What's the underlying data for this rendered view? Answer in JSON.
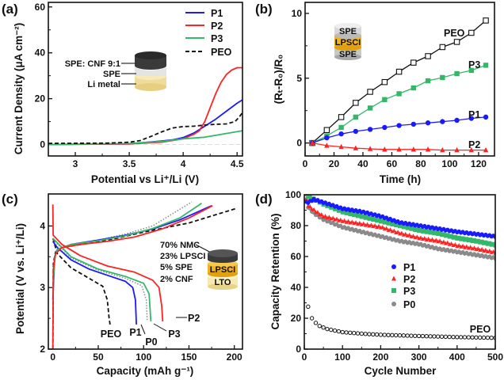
{
  "panel_labels": [
    "(a)",
    "(b)",
    "(c)",
    "(d)"
  ],
  "colors": {
    "P1": "#1a1aff",
    "P2": "#ff2222",
    "P3": "#33b86a",
    "P0": "#8a8a8a",
    "PEO": "#111111"
  },
  "insets": {
    "a": {
      "layers": [
        "SPE: CNF 9:1",
        "SPE",
        "Li metal"
      ]
    },
    "b": {
      "layers": [
        "SPE",
        "LPSCI",
        "SPE"
      ]
    },
    "c": {
      "composition": [
        "70% NMC",
        "23% LPSCI",
        "5% SPE",
        "2% CNF"
      ],
      "layers": [
        "LPSCI",
        "LTO"
      ]
    }
  },
  "chart_data": [
    {
      "type": "line",
      "xlabel": "Potential vs Li⁺/Li (V)",
      "ylabel": "Current Density (μA cm⁻²)",
      "xlim": [
        2.75,
        4.55
      ],
      "ylim": [
        -5,
        62
      ],
      "xticks": [
        3,
        3.5,
        4,
        4.5
      ],
      "yticks": [
        0,
        20,
        40,
        60
      ],
      "legend": {
        "placement": "top-right",
        "entries": [
          "P1",
          "P2",
          "P3",
          "PEO"
        ]
      },
      "series": [
        {
          "name": "P1",
          "style": "solid",
          "points": [
            [
              2.75,
              0
            ],
            [
              3.5,
              0.3
            ],
            [
              3.8,
              1.5
            ],
            [
              3.9,
              2
            ],
            [
              4.0,
              3
            ],
            [
              4.1,
              5
            ],
            [
              4.2,
              8
            ],
            [
              4.3,
              11
            ],
            [
              4.4,
              14.5
            ],
            [
              4.5,
              18
            ],
            [
              4.55,
              19.5
            ]
          ]
        },
        {
          "name": "P2",
          "style": "solid",
          "points": [
            [
              2.75,
              0
            ],
            [
              3.5,
              0.3
            ],
            [
              3.8,
              1
            ],
            [
              4.0,
              2.5
            ],
            [
              4.1,
              4.5
            ],
            [
              4.15,
              6
            ],
            [
              4.2,
              10
            ],
            [
              4.25,
              16
            ],
            [
              4.3,
              22
            ],
            [
              4.35,
              27
            ],
            [
              4.4,
              30.5
            ],
            [
              4.45,
              32.5
            ],
            [
              4.5,
              33.5
            ],
            [
              4.55,
              33.5
            ]
          ]
        },
        {
          "name": "P3",
          "style": "solid",
          "points": [
            [
              2.75,
              0
            ],
            [
              3.5,
              0.5
            ],
            [
              3.8,
              1.3
            ],
            [
              4.0,
              2.5
            ],
            [
              4.2,
              3.2
            ],
            [
              4.4,
              4.8
            ],
            [
              4.55,
              6
            ]
          ]
        },
        {
          "name": "PEO",
          "style": "dashed",
          "points": [
            [
              2.75,
              0.5
            ],
            [
              3.3,
              0.6
            ],
            [
              3.5,
              1
            ],
            [
              3.6,
              1.7
            ],
            [
              3.7,
              3.5
            ],
            [
              3.8,
              5.5
            ],
            [
              3.9,
              7.2
            ],
            [
              4.0,
              7.8
            ],
            [
              4.1,
              8
            ],
            [
              4.2,
              8.5
            ],
            [
              4.3,
              8.8
            ],
            [
              4.4,
              9
            ],
            [
              4.48,
              10
            ],
            [
              4.52,
              12
            ],
            [
              4.55,
              14
            ]
          ]
        }
      ]
    },
    {
      "type": "line",
      "xlabel": "Time (h)",
      "ylabel": "(Rₜ-R₀)/R₀",
      "xlim": [
        0,
        131
      ],
      "ylim": [
        -1,
        10.85
      ],
      "xticks": [
        0,
        20,
        40,
        60,
        80,
        100,
        120
      ],
      "yticks": [
        0,
        5,
        10
      ],
      "x": [
        5,
        15,
        25,
        35,
        45,
        55,
        65,
        75,
        85,
        95,
        105,
        115,
        125
      ],
      "series": [
        {
          "name": "PEO",
          "marker": "open-square",
          "values": [
            0,
            1.0,
            2.0,
            3.1,
            3.95,
            4.7,
            5.5,
            6.2,
            6.7,
            7.4,
            7.8,
            8.5,
            9.45
          ]
        },
        {
          "name": "P3",
          "marker": "square",
          "values": [
            0,
            0.55,
            1.2,
            2.0,
            2.7,
            3.35,
            3.8,
            4.25,
            4.8,
            5.05,
            5.35,
            5.6,
            6.0
          ]
        },
        {
          "name": "P1",
          "marker": "circle",
          "values": [
            0,
            0.4,
            0.7,
            0.9,
            1.05,
            1.2,
            1.35,
            1.45,
            1.55,
            1.65,
            1.75,
            1.9,
            2.0
          ]
        },
        {
          "name": "P2",
          "marker": "triangle",
          "values": [
            0,
            -0.2,
            -0.3,
            -0.4,
            -0.45,
            -0.5,
            -0.5,
            -0.5,
            -0.5,
            -0.55,
            -0.55,
            -0.55,
            -0.55
          ]
        }
      ],
      "annotations": [
        "PEO",
        "P3",
        "P1",
        "P2"
      ]
    },
    {
      "type": "line",
      "xlabel": "Capacity (mAh g⁻¹)",
      "ylabel": "Potential (V vs. Li⁺/Li)",
      "xlim": [
        -5,
        209
      ],
      "ylim": [
        2,
        4.52
      ],
      "xticks": [
        0,
        50,
        100,
        150,
        200
      ],
      "yticks": [
        2,
        3,
        4
      ],
      "series": [
        {
          "name": "PEO",
          "style": "dashed",
          "charge": [
            [
              0,
              2.0
            ],
            [
              0.5,
              3.4
            ],
            [
              3,
              3.58
            ],
            [
              10,
              3.65
            ],
            [
              40,
              3.72
            ],
            [
              70,
              3.8
            ],
            [
              100,
              3.9
            ],
            [
              150,
              4.05
            ],
            [
              201,
              4.28
            ]
          ],
          "discharge": [
            [
              0,
              3.8
            ],
            [
              5,
              3.55
            ],
            [
              20,
              3.32
            ],
            [
              40,
              3.15
            ],
            [
              55,
              3.02
            ],
            [
              60,
              2.8
            ],
            [
              62,
              2.5
            ],
            [
              63,
              2.4
            ]
          ]
        },
        {
          "name": "P0",
          "style": "dotted",
          "charge": [
            [
              0,
              2.0
            ],
            [
              0.5,
              3.4
            ],
            [
              4,
              3.6
            ],
            [
              20,
              3.7
            ],
            [
              50,
              3.77
            ],
            [
              80,
              3.87
            ],
            [
              110,
              4.0
            ],
            [
              153,
              4.39
            ]
          ],
          "discharge": [
            [
              0,
              3.78
            ],
            [
              20,
              3.48
            ],
            [
              50,
              3.28
            ],
            [
              80,
              3.15
            ],
            [
              98,
              3.03
            ],
            [
              103,
              2.8
            ],
            [
              104,
              2.45
            ]
          ]
        },
        {
          "name": "P1",
          "style": "solid",
          "charge": [
            [
              0,
              2.8
            ],
            [
              2,
              3.5
            ],
            [
              5,
              3.62
            ],
            [
              20,
              3.7
            ],
            [
              50,
              3.77
            ],
            [
              80,
              3.85
            ],
            [
              110,
              3.95
            ],
            [
              140,
              4.1
            ],
            [
              175,
              4.33
            ]
          ],
          "discharge": [
            [
              0,
              3.75
            ],
            [
              5,
              3.65
            ],
            [
              20,
              3.45
            ],
            [
              40,
              3.3
            ],
            [
              60,
              3.2
            ],
            [
              80,
              3.1
            ],
            [
              88,
              3.0
            ],
            [
              91,
              2.8
            ],
            [
              92,
              2.4
            ]
          ]
        },
        {
          "name": "P3",
          "style": "solid",
          "charge": [
            [
              0,
              2.9
            ],
            [
              2,
              3.5
            ],
            [
              5,
              3.62
            ],
            [
              20,
              3.7
            ],
            [
              50,
              3.76
            ],
            [
              80,
              3.84
            ],
            [
              110,
              3.96
            ],
            [
              140,
              4.13
            ],
            [
              164,
              4.37
            ]
          ],
          "discharge": [
            [
              0,
              3.8
            ],
            [
              20,
              3.5
            ],
            [
              50,
              3.3
            ],
            [
              80,
              3.18
            ],
            [
              100,
              3.07
            ],
            [
              106,
              2.9
            ],
            [
              108,
              2.45
            ]
          ]
        },
        {
          "name": "P2",
          "style": "solid",
          "charge": [
            [
              0,
              2.0
            ],
            [
              0.5,
              3.3
            ],
            [
              3,
              3.55
            ],
            [
              10,
              3.65
            ],
            [
              30,
              3.7
            ],
            [
              60,
              3.75
            ],
            [
              90,
              3.82
            ],
            [
              120,
              3.95
            ],
            [
              150,
              4.13
            ],
            [
              176,
              4.33
            ]
          ],
          "discharge": [
            [
              0,
              4.35
            ],
            [
              0.3,
              3.85
            ],
            [
              10,
              3.7
            ],
            [
              30,
              3.52
            ],
            [
              60,
              3.35
            ],
            [
              90,
              3.25
            ],
            [
              110,
              3.12
            ],
            [
              117,
              3.0
            ],
            [
              120,
              2.7
            ],
            [
              121,
              2.45
            ]
          ]
        }
      ],
      "annotations": [
        "PEO",
        "P1",
        "P0",
        "P3",
        "P2"
      ]
    },
    {
      "type": "scatter",
      "xlabel": "Cycle Number",
      "ylabel": "Capacity Retention (%)",
      "xlim": [
        0,
        500
      ],
      "ylim": [
        0,
        100
      ],
      "xticks": [
        0,
        100,
        200,
        300,
        400,
        500
      ],
      "yticks": [
        0,
        20,
        40,
        60,
        80,
        100
      ],
      "legend": {
        "placement": "center",
        "entries": [
          "P1",
          "P2",
          "P3",
          "P0"
        ]
      },
      "series": [
        {
          "name": "P1",
          "marker": "circle",
          "points": [
            [
              5,
              95
            ],
            [
              10,
              95
            ],
            [
              25,
              97
            ],
            [
              50,
              95
            ],
            [
              100,
              91
            ],
            [
              150,
              89
            ],
            [
              200,
              86
            ],
            [
              250,
              82
            ],
            [
              300,
              80
            ],
            [
              350,
              78
            ],
            [
              400,
              76
            ],
            [
              450,
              74.5
            ],
            [
              500,
              73
            ]
          ]
        },
        {
          "name": "P2",
          "marker": "triangle",
          "points": [
            [
              5,
              97
            ],
            [
              10,
              93
            ],
            [
              30,
              89
            ],
            [
              50,
              86
            ],
            [
              100,
              83
            ],
            [
              150,
              81
            ],
            [
              200,
              79
            ],
            [
              250,
              75
            ],
            [
              300,
              72
            ],
            [
              350,
              70
            ],
            [
              400,
              67
            ],
            [
              450,
              65
            ],
            [
              500,
              62.5
            ]
          ]
        },
        {
          "name": "P3",
          "marker": "square",
          "points": [
            [
              5,
              100
            ],
            [
              10,
              99
            ],
            [
              50,
              94
            ],
            [
              100,
              89
            ],
            [
              150,
              86
            ],
            [
              200,
              83
            ],
            [
              250,
              80
            ],
            [
              300,
              77
            ],
            [
              350,
              75
            ],
            [
              400,
              72
            ],
            [
              450,
              70
            ],
            [
              500,
              67.5
            ]
          ]
        },
        {
          "name": "P0",
          "marker": "circle",
          "points": [
            [
              5,
              96
            ],
            [
              10,
              92
            ],
            [
              25,
              88
            ],
            [
              50,
              84
            ],
            [
              100,
              79
            ],
            [
              150,
              76
            ],
            [
              200,
              73
            ],
            [
              250,
              70
            ],
            [
              300,
              68
            ],
            [
              350,
              65
            ],
            [
              400,
              63
            ],
            [
              450,
              61
            ],
            [
              500,
              59
            ]
          ]
        },
        {
          "name": "PEO",
          "marker": "open-circle",
          "points": [
            [
              10,
              27.5
            ],
            [
              20,
              20
            ],
            [
              30,
              17
            ],
            [
              40,
              15
            ],
            [
              50,
              14
            ],
            [
              60,
              13
            ],
            [
              80,
              12
            ],
            [
              100,
              11
            ],
            [
              150,
              10
            ],
            [
              200,
              9.3
            ],
            [
              300,
              8.5
            ],
            [
              400,
              7.8
            ],
            [
              500,
              7.3
            ]
          ]
        }
      ],
      "annotations": [
        "PEO"
      ]
    }
  ]
}
